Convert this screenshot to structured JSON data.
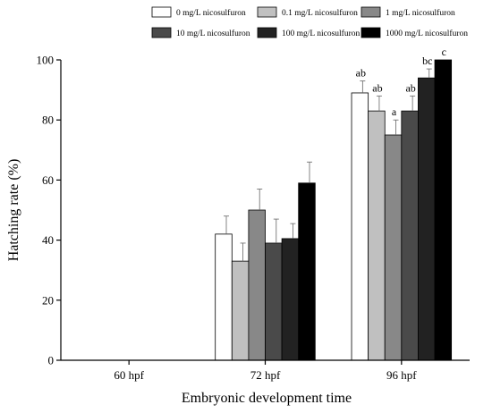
{
  "chart_data": {
    "type": "bar",
    "xlabel": "Embryonic development time",
    "ylabel": "Hatching rate (%)",
    "ylim": [
      0,
      100
    ],
    "yticks": [
      0,
      20,
      40,
      60,
      80,
      100
    ],
    "categories": [
      "60 hpf",
      "72 hpf",
      "96 hpf"
    ],
    "legend_position": "top",
    "series": [
      {
        "name": "0 mg/L nicosulfuron",
        "color": "#ffffff",
        "values": [
          0,
          42,
          89
        ],
        "errors": [
          0,
          6,
          4
        ],
        "labels": [
          "",
          "",
          "ab"
        ]
      },
      {
        "name": "0.1 mg/L nicosulfuron",
        "color": "#c0c0c0",
        "values": [
          0,
          33,
          83
        ],
        "errors": [
          0,
          6,
          5
        ],
        "labels": [
          "",
          "",
          "ab"
        ]
      },
      {
        "name": "1 mg/L nicosulfuron",
        "color": "#888888",
        "values": [
          0,
          50,
          75
        ],
        "errors": [
          0,
          7,
          5
        ],
        "labels": [
          "",
          "",
          "a"
        ]
      },
      {
        "name": "10 mg/L nicosulfuron",
        "color": "#4a4a4a",
        "values": [
          0,
          39,
          83
        ],
        "errors": [
          0,
          8,
          5
        ],
        "labels": [
          "",
          "",
          "ab"
        ]
      },
      {
        "name": "100 mg/L nicosulfuron",
        "color": "#222222",
        "values": [
          0,
          40.5,
          94
        ],
        "errors": [
          0,
          5,
          3
        ],
        "labels": [
          "",
          "",
          "bc"
        ]
      },
      {
        "name": "1000 mg/L nicosulfuron",
        "color": "#000000",
        "values": [
          0,
          59,
          100
        ],
        "errors": [
          0,
          7,
          0
        ],
        "labels": [
          "",
          "",
          "c"
        ]
      }
    ]
  }
}
